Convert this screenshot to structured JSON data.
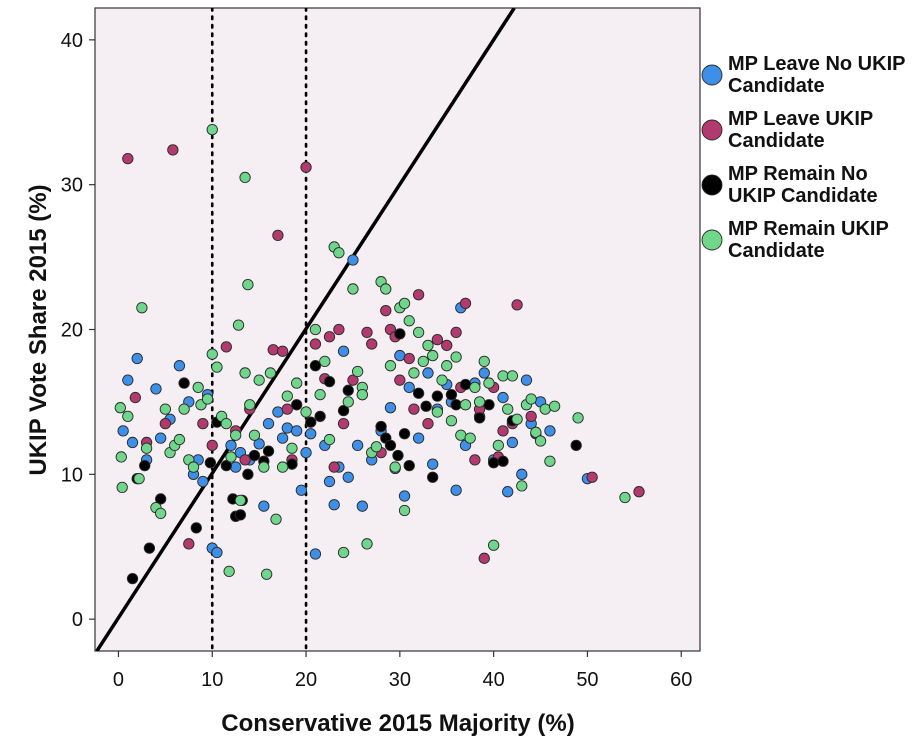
{
  "chart_data": {
    "type": "scatter",
    "title": "",
    "xlabel": "Conservative 2015 Majority (%)",
    "ylabel": "UKIP Vote Share 2015 (%)",
    "xlim": [
      -2.5,
      62
    ],
    "ylim": [
      -2.2,
      42.2
    ],
    "x_ticks": [
      "0",
      "10",
      "20",
      "30",
      "40",
      "50",
      "60"
    ],
    "y_ticks": [
      "0",
      "10",
      "20",
      "30",
      "40"
    ],
    "background": "#f5eef2",
    "grid": false,
    "legend_position": "right",
    "reference_lines": {
      "vertical_dotted_x": [
        10,
        20
      ],
      "fit_line": [
        [
          -2.3,
          -2.2
        ],
        [
          42.2,
          42.2
        ]
      ]
    },
    "series": [
      {
        "name": "MP Leave No UKIP Candidate",
        "color": "#3d8fe8",
        "points": [
          [
            1.0,
            16.5
          ],
          [
            0.5,
            13.0
          ],
          [
            1.5,
            12.2
          ],
          [
            2.0,
            18.0
          ],
          [
            3.0,
            11.0
          ],
          [
            4.0,
            15.9
          ],
          [
            4.5,
            12.5
          ],
          [
            5.5,
            13.8
          ],
          [
            6.5,
            17.5
          ],
          [
            7.5,
            15.0
          ],
          [
            8.0,
            10.0
          ],
          [
            8.5,
            11.0
          ],
          [
            9.0,
            9.5
          ],
          [
            9.5,
            15.5
          ],
          [
            10.0,
            4.9
          ],
          [
            10.5,
            4.6
          ],
          [
            11.0,
            13.8
          ],
          [
            12.0,
            12.0
          ],
          [
            12.5,
            10.5
          ],
          [
            13.0,
            11.5
          ],
          [
            14.0,
            11.0
          ],
          [
            15.0,
            12.1
          ],
          [
            15.5,
            7.8
          ],
          [
            16.0,
            13.5
          ],
          [
            17.0,
            14.3
          ],
          [
            17.5,
            12.5
          ],
          [
            18.0,
            13.2
          ],
          [
            19.0,
            13.0
          ],
          [
            19.5,
            8.9
          ],
          [
            20.0,
            11.5
          ],
          [
            20.5,
            12.8
          ],
          [
            21.0,
            4.5
          ],
          [
            22.0,
            12.0
          ],
          [
            22.5,
            9.5
          ],
          [
            23.0,
            7.9
          ],
          [
            23.5,
            10.5
          ],
          [
            24.0,
            18.5
          ],
          [
            24.5,
            9.8
          ],
          [
            25.0,
            24.8
          ],
          [
            25.5,
            12.0
          ],
          [
            26.0,
            7.8
          ],
          [
            27.0,
            11.0
          ],
          [
            28.0,
            13.0
          ],
          [
            29.0,
            14.6
          ],
          [
            29.5,
            10.4
          ],
          [
            30.0,
            18.2
          ],
          [
            30.5,
            8.5
          ],
          [
            31.0,
            16.0
          ],
          [
            32.0,
            12.5
          ],
          [
            33.0,
            17.0
          ],
          [
            33.5,
            10.7
          ],
          [
            34.0,
            14.5
          ],
          [
            35.0,
            16.2
          ],
          [
            35.5,
            15.0
          ],
          [
            36.0,
            8.9
          ],
          [
            36.5,
            21.5
          ],
          [
            37.0,
            12.0
          ],
          [
            38.0,
            16.3
          ],
          [
            38.5,
            14.0
          ],
          [
            39.0,
            17.0
          ],
          [
            40.0,
            11.0
          ],
          [
            41.0,
            15.3
          ],
          [
            41.5,
            8.8
          ],
          [
            42.0,
            12.2
          ],
          [
            43.0,
            10.0
          ],
          [
            43.5,
            16.5
          ],
          [
            44.0,
            13.5
          ],
          [
            45.0,
            15.0
          ],
          [
            46.0,
            13.0
          ],
          [
            50.0,
            9.7
          ]
        ]
      },
      {
        "name": "MP Leave UKIP Candidate",
        "color": "#b23a6e",
        "points": [
          [
            1.0,
            31.8
          ],
          [
            5.8,
            32.4
          ],
          [
            1.8,
            15.3
          ],
          [
            3.0,
            12.2
          ],
          [
            5.0,
            13.5
          ],
          [
            7.5,
            5.2
          ],
          [
            9.0,
            13.5
          ],
          [
            10.0,
            12.0
          ],
          [
            11.5,
            18.8
          ],
          [
            12.5,
            13.0
          ],
          [
            14.0,
            14.5
          ],
          [
            16.5,
            18.6
          ],
          [
            17.0,
            26.5
          ],
          [
            17.5,
            18.5
          ],
          [
            18.0,
            14.5
          ],
          [
            20.0,
            31.2
          ],
          [
            21.0,
            19.0
          ],
          [
            22.0,
            16.6
          ],
          [
            22.5,
            19.5
          ],
          [
            23.0,
            10.5
          ],
          [
            23.5,
            20.0
          ],
          [
            24.0,
            13.5
          ],
          [
            25.0,
            16.5
          ],
          [
            26.0,
            15.5
          ],
          [
            26.5,
            19.8
          ],
          [
            27.0,
            19.0
          ],
          [
            28.0,
            11.5
          ],
          [
            28.5,
            21.3
          ],
          [
            29.0,
            20.0
          ],
          [
            29.5,
            19.5
          ],
          [
            30.0,
            16.5
          ],
          [
            31.0,
            18.0
          ],
          [
            32.0,
            22.4
          ],
          [
            33.0,
            13.5
          ],
          [
            34.0,
            19.3
          ],
          [
            35.0,
            18.9
          ],
          [
            36.0,
            19.8
          ],
          [
            36.5,
            16.0
          ],
          [
            37.0,
            21.8
          ],
          [
            38.0,
            11.0
          ],
          [
            38.5,
            14.5
          ],
          [
            39.0,
            4.2
          ],
          [
            40.0,
            16.0
          ],
          [
            40.5,
            11.2
          ],
          [
            41.0,
            13.0
          ],
          [
            42.0,
            13.5
          ],
          [
            42.5,
            21.7
          ],
          [
            44.0,
            14.0
          ],
          [
            44.5,
            12.8
          ],
          [
            50.5,
            9.8
          ],
          [
            55.5,
            8.8
          ],
          [
            13.5,
            11.0
          ],
          [
            18.5,
            11.0
          ],
          [
            31.5,
            14.5
          ]
        ]
      },
      {
        "name": "MP Remain No UKIP Candidate",
        "color": "#000000",
        "points": [
          [
            1.5,
            2.8
          ],
          [
            3.3,
            4.9
          ],
          [
            2.0,
            9.7
          ],
          [
            2.8,
            10.6
          ],
          [
            4.5,
            8.3
          ],
          [
            7.0,
            16.3
          ],
          [
            8.3,
            6.3
          ],
          [
            9.8,
            10.8
          ],
          [
            10.5,
            13.6
          ],
          [
            11.5,
            10.6
          ],
          [
            12.2,
            8.3
          ],
          [
            12.5,
            7.1
          ],
          [
            13.0,
            7.2
          ],
          [
            13.8,
            10.0
          ],
          [
            14.5,
            11.3
          ],
          [
            15.5,
            10.9
          ],
          [
            16.0,
            11.6
          ],
          [
            18.5,
            10.7
          ],
          [
            19.0,
            14.8
          ],
          [
            20.5,
            13.6
          ],
          [
            21.0,
            17.5
          ],
          [
            21.5,
            14.0
          ],
          [
            22.5,
            16.4
          ],
          [
            24.0,
            14.4
          ],
          [
            24.5,
            15.8
          ],
          [
            28.0,
            13.3
          ],
          [
            28.5,
            12.5
          ],
          [
            29.0,
            12.0
          ],
          [
            29.8,
            11.3
          ],
          [
            30.5,
            12.8
          ],
          [
            31.0,
            10.6
          ],
          [
            32.0,
            15.6
          ],
          [
            32.8,
            14.7
          ],
          [
            33.5,
            9.8
          ],
          [
            34.0,
            15.4
          ],
          [
            35.5,
            15.5
          ],
          [
            36.0,
            14.8
          ],
          [
            37.0,
            16.2
          ],
          [
            38.5,
            13.9
          ],
          [
            39.5,
            14.8
          ],
          [
            40.0,
            10.8
          ],
          [
            41.0,
            10.9
          ],
          [
            42.0,
            13.7
          ],
          [
            48.8,
            12.0
          ],
          [
            30.0,
            19.7
          ],
          [
            13.2,
            8.2
          ]
        ]
      },
      {
        "name": "MP Remain UKIP Candidate",
        "color": "#6fd68c",
        "points": [
          [
            10.0,
            33.8
          ],
          [
            13.5,
            30.5
          ],
          [
            2.5,
            21.5
          ],
          [
            13.8,
            23.1
          ],
          [
            12.8,
            20.3
          ],
          [
            0.2,
            14.6
          ],
          [
            0.3,
            11.2
          ],
          [
            0.4,
            9.1
          ],
          [
            1.0,
            14.0
          ],
          [
            2.2,
            9.7
          ],
          [
            3.0,
            11.8
          ],
          [
            4.0,
            7.7
          ],
          [
            4.5,
            7.3
          ],
          [
            5.0,
            14.5
          ],
          [
            5.5,
            11.5
          ],
          [
            6.0,
            12.0
          ],
          [
            6.5,
            12.4
          ],
          [
            7.0,
            14.5
          ],
          [
            7.5,
            11.0
          ],
          [
            8.0,
            10.5
          ],
          [
            8.5,
            16.0
          ],
          [
            8.8,
            14.8
          ],
          [
            9.5,
            15.2
          ],
          [
            10.0,
            18.3
          ],
          [
            10.5,
            17.4
          ],
          [
            11.0,
            14.0
          ],
          [
            11.5,
            13.5
          ],
          [
            11.8,
            3.3
          ],
          [
            12.0,
            11.2
          ],
          [
            12.5,
            12.7
          ],
          [
            13.0,
            8.2
          ],
          [
            13.5,
            17.0
          ],
          [
            14.0,
            14.8
          ],
          [
            14.5,
            12.7
          ],
          [
            15.0,
            16.5
          ],
          [
            15.5,
            10.5
          ],
          [
            15.8,
            3.1
          ],
          [
            16.2,
            17.0
          ],
          [
            16.8,
            6.9
          ],
          [
            17.5,
            10.5
          ],
          [
            18.0,
            15.4
          ],
          [
            18.5,
            11.8
          ],
          [
            19.0,
            16.3
          ],
          [
            20.0,
            14.3
          ],
          [
            21.0,
            20.0
          ],
          [
            21.5,
            15.5
          ],
          [
            22.0,
            17.8
          ],
          [
            22.5,
            12.4
          ],
          [
            23.0,
            25.7
          ],
          [
            23.5,
            25.3
          ],
          [
            24.0,
            4.6
          ],
          [
            24.5,
            15.0
          ],
          [
            25.0,
            22.8
          ],
          [
            25.5,
            17.1
          ],
          [
            26.0,
            16.0
          ],
          [
            26.5,
            5.2
          ],
          [
            27.0,
            11.5
          ],
          [
            27.5,
            11.9
          ],
          [
            28.0,
            23.3
          ],
          [
            28.5,
            22.8
          ],
          [
            29.0,
            17.5
          ],
          [
            29.5,
            10.5
          ],
          [
            30.0,
            21.5
          ],
          [
            30.5,
            21.8
          ],
          [
            31.0,
            20.6
          ],
          [
            31.5,
            17.0
          ],
          [
            32.0,
            19.8
          ],
          [
            32.5,
            17.8
          ],
          [
            33.0,
            18.9
          ],
          [
            33.5,
            18.2
          ],
          [
            34.0,
            14.3
          ],
          [
            34.5,
            16.5
          ],
          [
            35.0,
            17.5
          ],
          [
            35.5,
            13.7
          ],
          [
            36.0,
            18.1
          ],
          [
            36.5,
            12.7
          ],
          [
            37.0,
            14.8
          ],
          [
            37.5,
            12.5
          ],
          [
            38.0,
            16.0
          ],
          [
            38.5,
            15.0
          ],
          [
            39.0,
            17.8
          ],
          [
            39.5,
            16.3
          ],
          [
            40.0,
            5.1
          ],
          [
            40.5,
            12.0
          ],
          [
            41.0,
            16.8
          ],
          [
            41.5,
            14.5
          ],
          [
            42.0,
            16.8
          ],
          [
            42.5,
            13.8
          ],
          [
            43.0,
            9.2
          ],
          [
            43.5,
            14.8
          ],
          [
            44.0,
            15.2
          ],
          [
            44.5,
            12.9
          ],
          [
            45.0,
            12.3
          ],
          [
            45.5,
            14.5
          ],
          [
            46.0,
            10.9
          ],
          [
            46.5,
            14.7
          ],
          [
            49.0,
            13.9
          ],
          [
            54.0,
            8.4
          ],
          [
            30.5,
            7.5
          ],
          [
            26.0,
            15.5
          ]
        ]
      }
    ]
  }
}
